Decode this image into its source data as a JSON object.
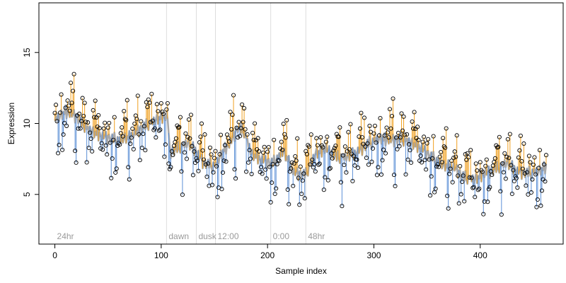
{
  "chart_data": {
    "type": "scatter",
    "title": "",
    "xlabel": "Sample index",
    "ylabel": "Expression",
    "xlim": [
      -15,
      478
    ],
    "ylim": [
      1.5,
      18.5
    ],
    "xticks": [
      0,
      100,
      200,
      300,
      400
    ],
    "yticks": [
      5,
      10,
      15
    ],
    "grid": false,
    "legend": "none",
    "colors": {
      "points_stroke": "#000000",
      "smooth_line": "#a8a8a8",
      "residual_positive": "#f0a020",
      "residual_negative": "#5b8fd6",
      "marker_lines": "#dddddd",
      "annotation_text": "#9a9a9a"
    },
    "markers": [
      {
        "x": 0,
        "label": "24hr"
      },
      {
        "x": 105,
        "label": "dawn"
      },
      {
        "x": 133,
        "label": "dusk"
      },
      {
        "x": 151,
        "label": "12:00"
      },
      {
        "x": 203,
        "label": "0:00"
      },
      {
        "x": 236,
        "label": "48hr"
      }
    ],
    "trend": [
      [
        0,
        10.2
      ],
      [
        10,
        10.8
      ],
      [
        20,
        10.5
      ],
      [
        30,
        9.6
      ],
      [
        40,
        9.2
      ],
      [
        50,
        9.0
      ],
      [
        60,
        8.8
      ],
      [
        70,
        9.0
      ],
      [
        80,
        9.6
      ],
      [
        90,
        10.0
      ],
      [
        100,
        10.4
      ],
      [
        106,
        10.5
      ],
      [
        108,
        8.0
      ],
      [
        115,
        8.2
      ],
      [
        125,
        8.6
      ],
      [
        133,
        8.0
      ],
      [
        140,
        7.2
      ],
      [
        151,
        7.0
      ],
      [
        158,
        8.0
      ],
      [
        165,
        8.6
      ],
      [
        172,
        9.7
      ],
      [
        178,
        9.4
      ],
      [
        185,
        7.8
      ],
      [
        195,
        7.4
      ],
      [
        205,
        7.2
      ],
      [
        215,
        8.0
      ],
      [
        225,
        6.5
      ],
      [
        236,
        6.4
      ],
      [
        245,
        7.8
      ],
      [
        255,
        8.2
      ],
      [
        265,
        7.6
      ],
      [
        275,
        7.6
      ],
      [
        285,
        8.0
      ],
      [
        295,
        8.6
      ],
      [
        305,
        8.9
      ],
      [
        315,
        8.8
      ],
      [
        325,
        8.9
      ],
      [
        335,
        8.6
      ],
      [
        345,
        8.2
      ],
      [
        355,
        7.6
      ],
      [
        365,
        7.0
      ],
      [
        375,
        6.9
      ],
      [
        385,
        6.2
      ],
      [
        395,
        6.0
      ],
      [
        405,
        6.5
      ],
      [
        415,
        6.8
      ],
      [
        425,
        7.2
      ],
      [
        435,
        6.6
      ],
      [
        445,
        6.5
      ],
      [
        455,
        6.6
      ],
      [
        462,
        6.9
      ]
    ],
    "trend_noise": [
      0.0,
      0.3,
      -0.2,
      0.4,
      -0.3,
      0.1,
      0.5,
      -0.4,
      0.2,
      -0.1,
      0.6,
      -0.5,
      0.3,
      0.0,
      -0.3,
      0.4,
      -0.2,
      0.1,
      0.5,
      -0.6,
      0.2,
      0.3,
      -0.4,
      0.0,
      0.4,
      -0.3,
      0.6,
      -0.2,
      -0.5,
      0.3
    ],
    "residuals": [
      0.6,
      -1.0,
      1.3,
      0.2,
      -0.4,
      2.1,
      -1.8,
      0.9,
      -0.3,
      1.6,
      -2.6,
      0.5,
      1.1,
      -0.7,
      0.0,
      -1.4,
      2.4,
      0.3,
      -0.9,
      1.8,
      -0.2,
      -3.1,
      0.8,
      1.4,
      -1.2,
      0.4,
      2.8,
      -0.6,
      -1.9,
      1.0,
      0.1,
      -0.5,
      1.5,
      -2.2,
      0.7,
      0.2,
      -1.1,
      2.0,
      -0.3,
      0.9,
      -3.8,
      0.6,
      1.2,
      -0.8,
      0.3,
      -1.6,
      2.3,
      -0.1,
      0.5,
      -2.4
    ]
  }
}
